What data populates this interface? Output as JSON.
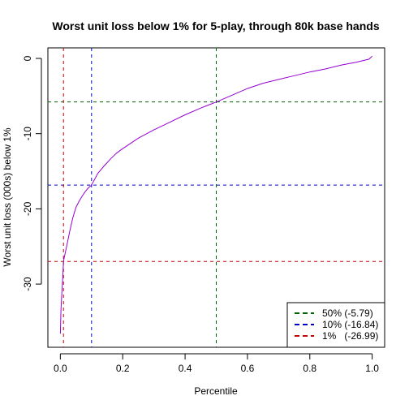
{
  "chart_data": {
    "type": "line",
    "title": "Worst unit loss below 1% for 5-play, through 80k base hands",
    "xlabel": "Percentile",
    "ylabel": "Worst unit loss (000s) below 1%",
    "xlim": [
      -0.04,
      1.04
    ],
    "ylim": [
      -38.4,
      1.4
    ],
    "x_ticks": [
      0.0,
      0.2,
      0.4,
      0.6,
      0.8,
      1.0
    ],
    "x_tick_labels": [
      "0.0",
      "0.2",
      "0.4",
      "0.6",
      "0.8",
      "1.0"
    ],
    "y_ticks": [
      -30,
      -20,
      -10,
      0
    ],
    "y_tick_labels": [
      "-30",
      "-20",
      "-10",
      "0"
    ],
    "grid": false,
    "series": [
      {
        "color": "#9400D3",
        "x": [
          0.0,
          0.002,
          0.005,
          0.008,
          0.01,
          0.015,
          0.02,
          0.03,
          0.04,
          0.05,
          0.06,
          0.07,
          0.08,
          0.09,
          0.1,
          0.12,
          0.14,
          0.16,
          0.18,
          0.2,
          0.25,
          0.3,
          0.35,
          0.4,
          0.45,
          0.5,
          0.55,
          0.6,
          0.65,
          0.7,
          0.75,
          0.8,
          0.85,
          0.9,
          0.95,
          0.99,
          1.0
        ],
        "y": [
          -36.6,
          -33.5,
          -31.0,
          -29.0,
          -26.99,
          -26.0,
          -25.0,
          -23.0,
          -21.2,
          -19.8,
          -19.0,
          -18.3,
          -17.7,
          -17.2,
          -16.84,
          -15.3,
          -14.3,
          -13.4,
          -12.6,
          -12.0,
          -10.6,
          -9.5,
          -8.5,
          -7.5,
          -6.6,
          -5.79,
          -4.9,
          -4.0,
          -3.3,
          -2.8,
          -2.3,
          -1.8,
          -1.4,
          -0.9,
          -0.5,
          -0.1,
          0.3
        ]
      }
    ],
    "reference_lines": [
      {
        "orientation": "vertical",
        "value": 0.5,
        "color": "#006400"
      },
      {
        "orientation": "horizontal",
        "value": -5.79,
        "color": "#006400"
      },
      {
        "orientation": "vertical",
        "value": 0.1,
        "color": "#0000CD"
      },
      {
        "orientation": "horizontal",
        "value": -16.84,
        "color": "#0000CD"
      },
      {
        "orientation": "vertical",
        "value": 0.01,
        "color": "#CD0000"
      },
      {
        "orientation": "horizontal",
        "value": -26.99,
        "color": "#CD0000"
      }
    ],
    "legend": {
      "placement": "bottom-right",
      "entries": [
        {
          "label": "50% (-5.79)",
          "color": "#006400"
        },
        {
          "label": "10% (-16.84)",
          "color": "#0000CD"
        },
        {
          "label": "1%   (-26.99)",
          "color": "#CD0000"
        }
      ]
    }
  }
}
